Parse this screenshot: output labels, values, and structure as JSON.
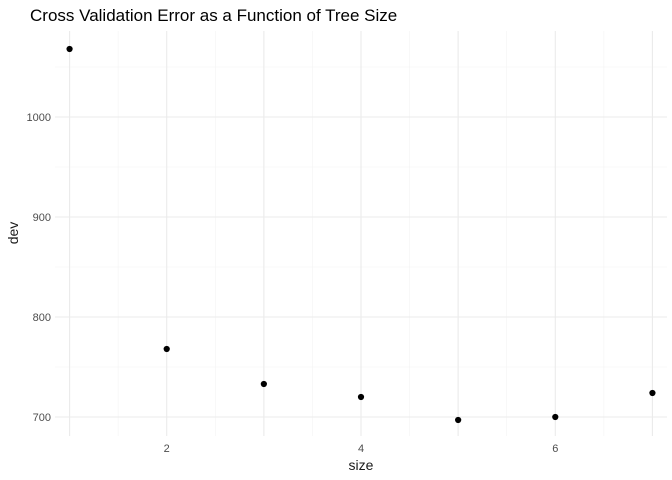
{
  "chart_data": {
    "type": "scatter",
    "title": "Cross Validation Error as a Function of Tree Size",
    "xlabel": "size",
    "ylabel": "dev",
    "x": [
      1,
      2,
      3,
      4,
      5,
      6,
      7
    ],
    "y": [
      1068,
      768,
      733,
      720,
      697,
      700,
      724
    ],
    "xlim": [
      0.85,
      7.15
    ],
    "ylim": [
      681,
      1086
    ],
    "x_ticks": [
      2,
      4,
      6
    ],
    "y_ticks": [
      700,
      800,
      900,
      1000
    ],
    "grid": true,
    "legend": "none",
    "point_color": "#000000"
  }
}
